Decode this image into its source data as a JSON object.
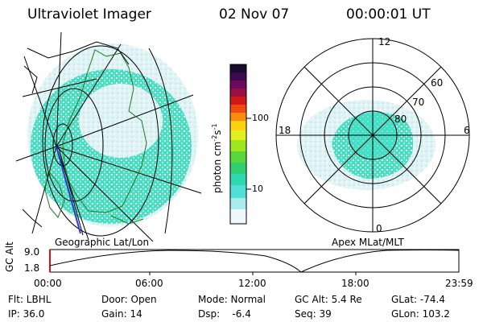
{
  "header": {
    "instrument": "Ultraviolet Imager",
    "date": "02 Nov 07",
    "time": "00:00:01 UT"
  },
  "left_panel": {
    "caption": "Geographic Lat/Lon"
  },
  "right_panel": {
    "caption": "Apex MLat/MLT",
    "mlt_labels": {
      "top": "12",
      "right": "6",
      "bottom": "0",
      "left": "18"
    },
    "lat_labels": [
      "60",
      "70",
      "80"
    ]
  },
  "colorbar": {
    "unit_label": "photon cm",
    "unit_sup1": "-2",
    "unit_s": "s",
    "unit_sup2": "-1",
    "ticks": [
      "100",
      "10"
    ]
  },
  "altitude_plot": {
    "ylabel": "GC Alt",
    "ytick_top": "9.0",
    "ytick_bottom": "1.8",
    "xticks": [
      "00:00",
      "06:00",
      "12:00",
      "18:00",
      "23:59"
    ]
  },
  "info": {
    "row1": [
      "Flt: LBHL",
      "Door: Open",
      "Mode: Normal",
      "GC Alt: 5.4 Re",
      "GLat: -74.4"
    ],
    "row2": [
      "IP: 36.0",
      "Gain: 14",
      "Dsp:    -6.4",
      "Seq: 39",
      "GLon: 103.2"
    ]
  },
  "colors": {
    "aurora_light": "#d4ecf0",
    "aurora_mid": "#3ee0c8",
    "aurora_green": "#7cd96a",
    "track_blue": "#2a3cc8",
    "axis_red": "#e01010"
  }
}
